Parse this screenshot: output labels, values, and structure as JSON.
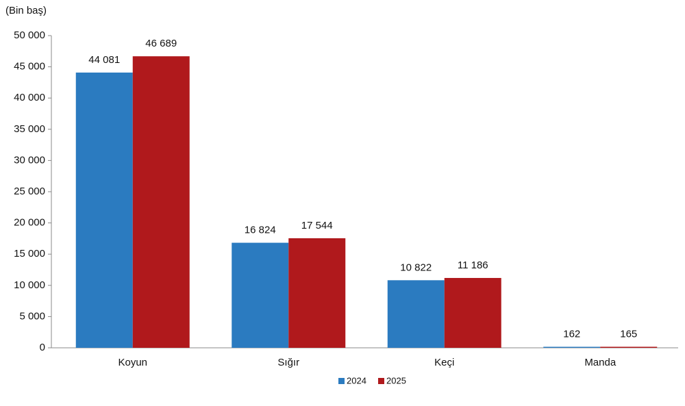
{
  "chart_data": {
    "type": "bar",
    "y_axis_label": "(Bin baş)",
    "categories": [
      "Koyun",
      "Sığır",
      "Keçi",
      "Manda"
    ],
    "series": [
      {
        "name": "2024",
        "color": "#2b7bc0",
        "values": [
          44081,
          16824,
          10822,
          162
        ],
        "value_labels": [
          "44 081",
          "16 824",
          "10 822",
          "162"
        ]
      },
      {
        "name": "2025",
        "color": "#b0191c",
        "values": [
          46689,
          17544,
          11186,
          165
        ],
        "value_labels": [
          "46 689",
          "17 544",
          "11 186",
          "165"
        ]
      }
    ],
    "ylim": [
      0,
      50000
    ],
    "yticks": [
      0,
      {
        "value": 5000,
        "label": "5 000"
      },
      {
        "value": 10000,
        "label": "10 000"
      },
      {
        "value": 15000,
        "label": "15 000"
      },
      {
        "value": 20000,
        "label": "20 000"
      },
      {
        "value": 25000,
        "label": "25 000"
      },
      {
        "value": 30000,
        "label": "30 000"
      },
      {
        "value": 35000,
        "label": "35 000"
      },
      {
        "value": 40000,
        "label": "40 000"
      },
      {
        "value": 45000,
        "label": "45 000"
      },
      {
        "value": 50000,
        "label": "50 000"
      }
    ],
    "grid": false,
    "legend": "bottom"
  }
}
